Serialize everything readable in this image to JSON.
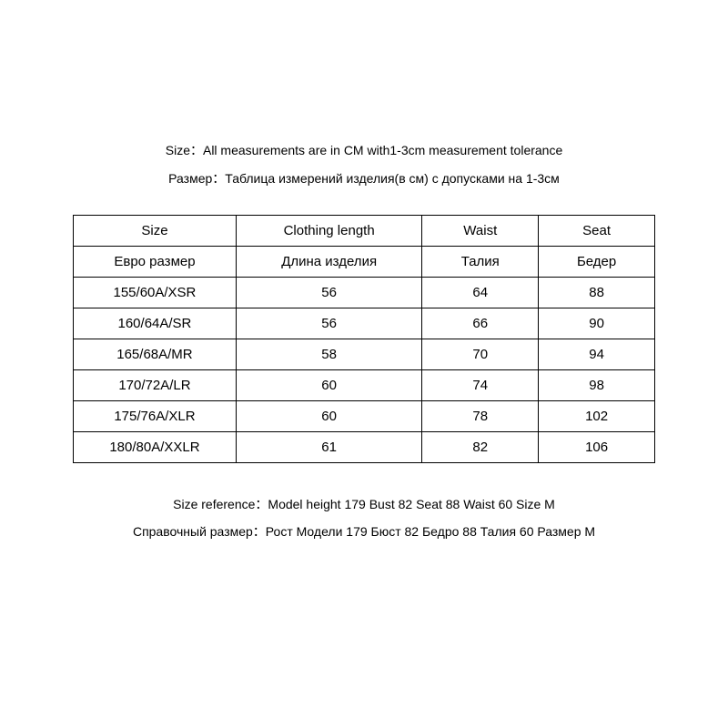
{
  "header": {
    "line_en": "Size：All measurements are in CM with1-3cm measurement tolerance",
    "line_ru": "Размер：Таблица измерений изделия(в см) с допусками на 1-3см"
  },
  "table": {
    "columns": [
      {
        "en": "Size",
        "ru": "Евро размер"
      },
      {
        "en": "Clothing length",
        "ru": "Длина изделия"
      },
      {
        "en": "Waist",
        "ru": "Талия"
      },
      {
        "en": "Seat",
        "ru": "Бедер"
      }
    ],
    "rows": [
      {
        "size": "155/60A/XSR",
        "length": "56",
        "waist": "64",
        "seat": "88"
      },
      {
        "size": "160/64A/SR",
        "length": "56",
        "waist": "66",
        "seat": "90"
      },
      {
        "size": "165/68A/MR",
        "length": "58",
        "waist": "70",
        "seat": "94"
      },
      {
        "size": "170/72A/LR",
        "length": "60",
        "waist": "74",
        "seat": "98"
      },
      {
        "size": "175/76A/XLR",
        "length": "60",
        "waist": "78",
        "seat": "102"
      },
      {
        "size": "180/80A/XXLR",
        "length": "61",
        "waist": "82",
        "seat": "106"
      }
    ],
    "border_color": "#000000",
    "background_color": "#ffffff",
    "text_color": "#000000",
    "font_size": 15
  },
  "footer": {
    "line_en": "Size reference：Model  height 179  Bust 82  Seat 88  Waist 60  Size M",
    "line_ru": "Справочный размер：Рост Модели 179 Бюст 82 Бедро 88 Талия 60 Размер M"
  }
}
